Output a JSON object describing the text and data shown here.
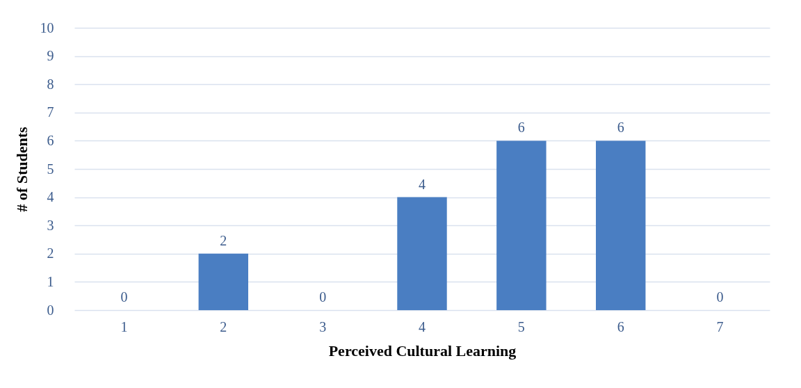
{
  "chart_data": {
    "type": "bar",
    "xlabel": "Perceived Cultural Learning",
    "ylabel": "# of Students",
    "categories": [
      "1",
      "2",
      "3",
      "4",
      "5",
      "6",
      "7"
    ],
    "values": [
      0,
      2,
      0,
      4,
      6,
      6,
      0
    ],
    "color": "#4a7ec2",
    "ylim": [
      0,
      10
    ],
    "yticks": [
      0,
      1,
      2,
      3,
      4,
      5,
      6,
      7,
      8,
      9,
      10
    ],
    "grid": "y",
    "data_labels": true
  }
}
